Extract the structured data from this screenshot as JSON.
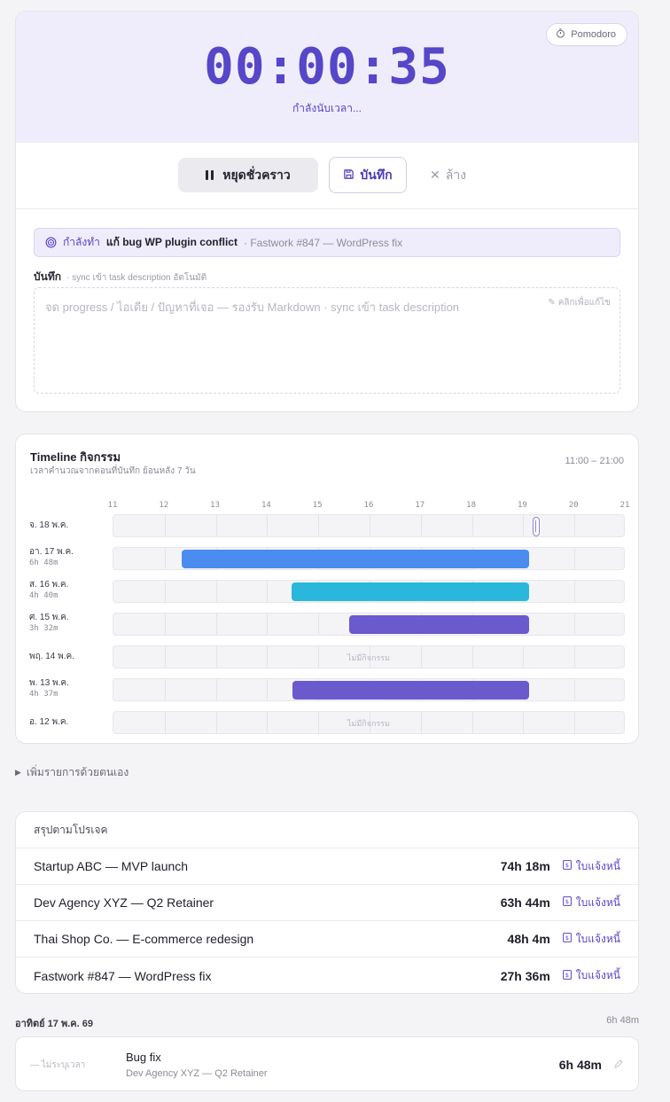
{
  "timer": {
    "display": "00:00:35",
    "status": "กำลังนับเวลา...",
    "pomodoro_label": "Pomodoro",
    "pause_label": "หยุดชั่วคราว",
    "save_label": "บันทึก",
    "clear_label": "ล้าง",
    "accent_color": "#5646c8"
  },
  "current_task": {
    "prefix": "กำลังทำ",
    "task": "แก้ bug WP plugin conflict",
    "project": "· Fastwork #847 — WordPress fix"
  },
  "notes": {
    "label": "บันทึก",
    "hint": "· sync เข้า task description อัตโนมัติ",
    "placeholder": "จด progress / ไอเดีย / ปัญหาที่เจอ — รองรับ Markdown · sync เข้า task description",
    "edit_hint": "คลิกเพื่อแก้ไข"
  },
  "timeline": {
    "title": "Timeline กิจกรรม",
    "subtitle": "เวลาคำนวณจากตอนที่บันทึก ย้อนหลัง 7 วัน",
    "range": "11:00 – 21:00",
    "hours": [
      "11",
      "12",
      "13",
      "14",
      "15",
      "16",
      "17",
      "18",
      "19",
      "20",
      "21"
    ],
    "start_hour": 11,
    "end_hour": 21,
    "empty_text": "ไม่มีกิจกรรม",
    "rows": [
      {
        "date": "จ. 18 พ.ค.",
        "duration": "",
        "bar": null,
        "now_marker": 19.25
      },
      {
        "date": "อา. 17 พ.ค.",
        "duration": "6h 48m",
        "bar": {
          "start": 12.33,
          "end": 19.12,
          "color": "#4b8cf0"
        }
      },
      {
        "date": "ส. 16 พ.ค.",
        "duration": "4h 40m",
        "bar": {
          "start": 14.47,
          "end": 19.12,
          "color": "#29b8dc"
        }
      },
      {
        "date": "ศ. 15 พ.ค.",
        "duration": "3h 32m",
        "bar": {
          "start": 15.6,
          "end": 19.12,
          "color": "#6a5acd"
        }
      },
      {
        "date": "พฤ. 14 พ.ค.",
        "duration": "",
        "bar": null
      },
      {
        "date": "พ. 13 พ.ค.",
        "duration": "4h 37m",
        "bar": {
          "start": 14.5,
          "end": 19.12,
          "color": "#6a5acd"
        }
      },
      {
        "date": "อ. 12 พ.ค.",
        "duration": "",
        "bar": null
      }
    ]
  },
  "manual_add": {
    "label": "เพิ่มรายการด้วยตนเอง"
  },
  "summary": {
    "title": "สรุปตามโปรเจค",
    "invoice_label": "ใบแจ้งหนี้",
    "rows": [
      {
        "project": "Startup ABC — MVP launch",
        "hours": "74h 18m"
      },
      {
        "project": "Dev Agency XYZ — Q2 Retainer",
        "hours": "63h 44m"
      },
      {
        "project": "Thai Shop Co. — E-commerce redesign",
        "hours": "48h 4m"
      },
      {
        "project": "Fastwork #847 — WordPress fix",
        "hours": "27h 36m"
      }
    ]
  },
  "day": {
    "date": "อาทิตย์ 17 พ.ค. 69",
    "total": "6h 48m",
    "entries": [
      {
        "time": "— ไม่ระบุเวลา",
        "title": "Bug fix",
        "project": "Dev Agency XYZ — Q2 Retainer",
        "duration": "6h 48m"
      }
    ]
  }
}
